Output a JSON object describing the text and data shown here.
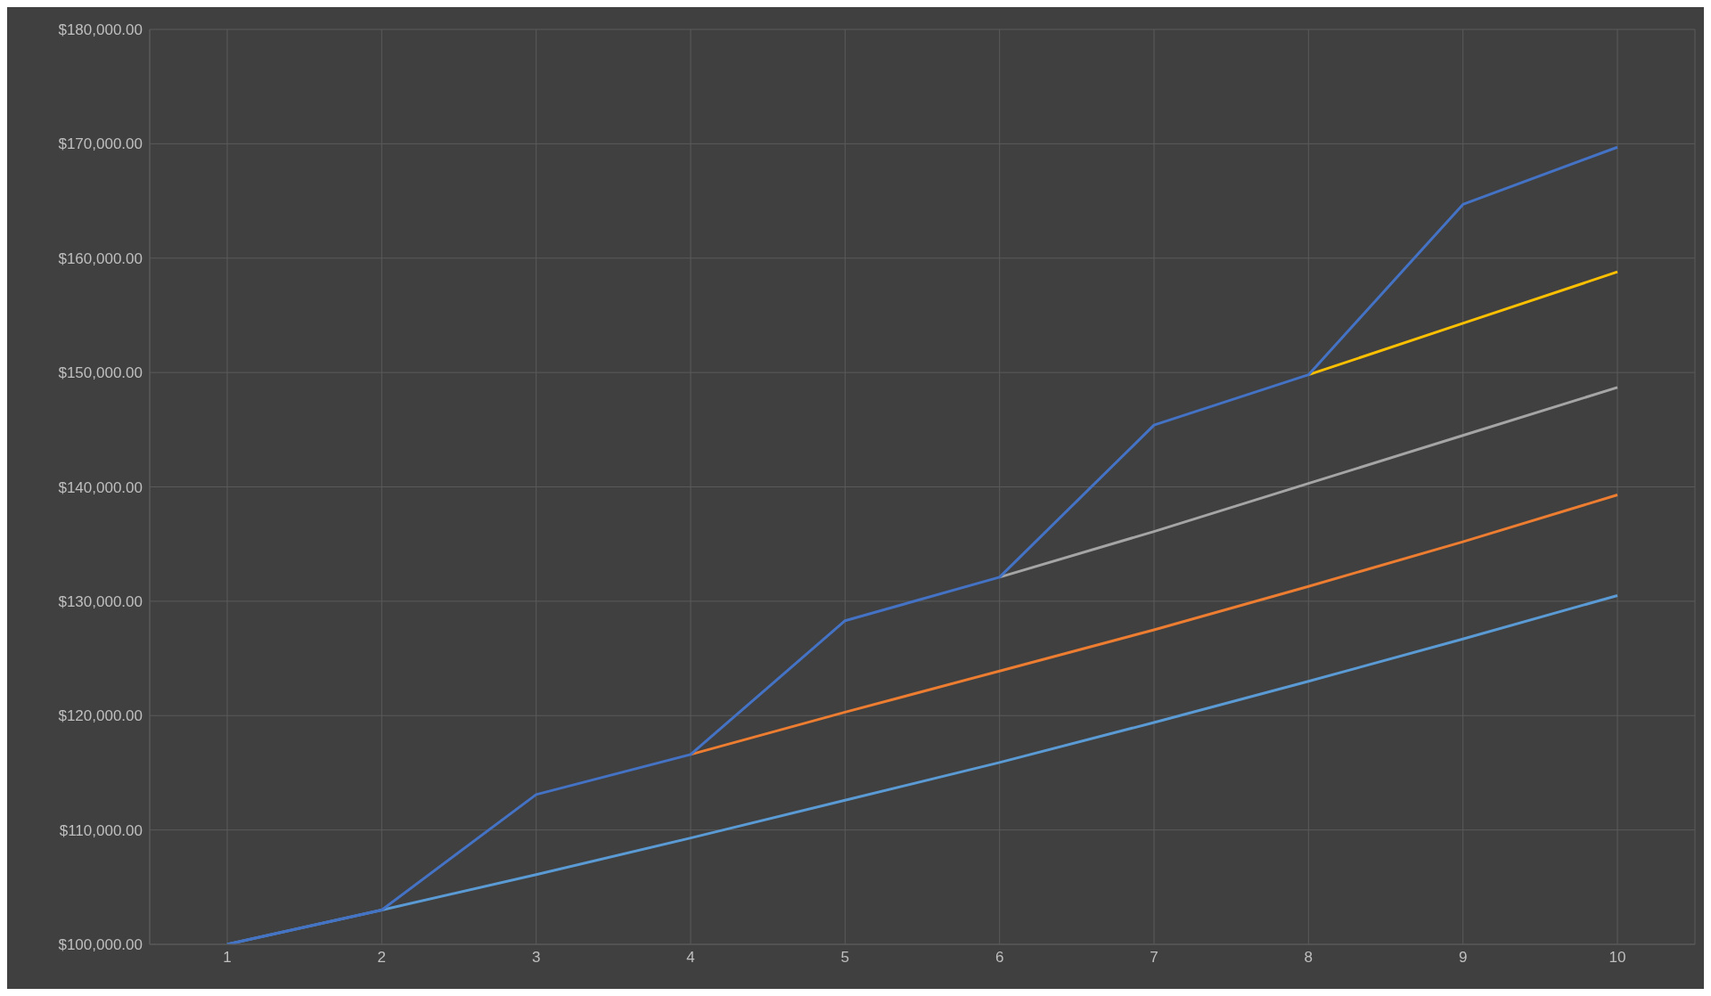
{
  "chart_data": {
    "type": "line",
    "categories": [
      "1",
      "2",
      "3",
      "4",
      "5",
      "6",
      "7",
      "8",
      "9",
      "10"
    ],
    "series": [
      {
        "color": "#5b9bd5",
        "values": [
          100000,
          103000,
          106100,
          109300,
          112600,
          115900,
          119400,
          123000,
          126700,
          130500
        ]
      },
      {
        "color": "#ed7d31",
        "values": [
          null,
          null,
          null,
          116600,
          120300,
          123900,
          127500,
          131300,
          135200,
          139300
        ]
      },
      {
        "color": "#a5a5a5",
        "values": [
          null,
          null,
          null,
          null,
          null,
          132100,
          136100,
          140300,
          144500,
          148700
        ]
      },
      {
        "color": "#ffc000",
        "values": [
          null,
          null,
          null,
          null,
          null,
          null,
          null,
          149800,
          154300,
          158800
        ]
      },
      {
        "color": "#4472c4",
        "values": [
          100000,
          103000,
          113100,
          116600,
          128300,
          132100,
          145400,
          149800,
          164700,
          169700
        ]
      }
    ],
    "ylim": [
      100000,
      180000
    ],
    "yticks": [
      {
        "value": 100000,
        "label": "$100,000.00"
      },
      {
        "value": 110000,
        "label": "$110,000.00"
      },
      {
        "value": 120000,
        "label": "$120,000.00"
      },
      {
        "value": 130000,
        "label": "$130,000.00"
      },
      {
        "value": 140000,
        "label": "$140,000.00"
      },
      {
        "value": 150000,
        "label": "$150,000.00"
      },
      {
        "value": 160000,
        "label": "$160,000.00"
      },
      {
        "value": 170000,
        "label": "$170,000.00"
      },
      {
        "value": 180000,
        "label": "$180,000.00"
      }
    ],
    "grid": true,
    "marker": "none",
    "line_style": "solid"
  }
}
